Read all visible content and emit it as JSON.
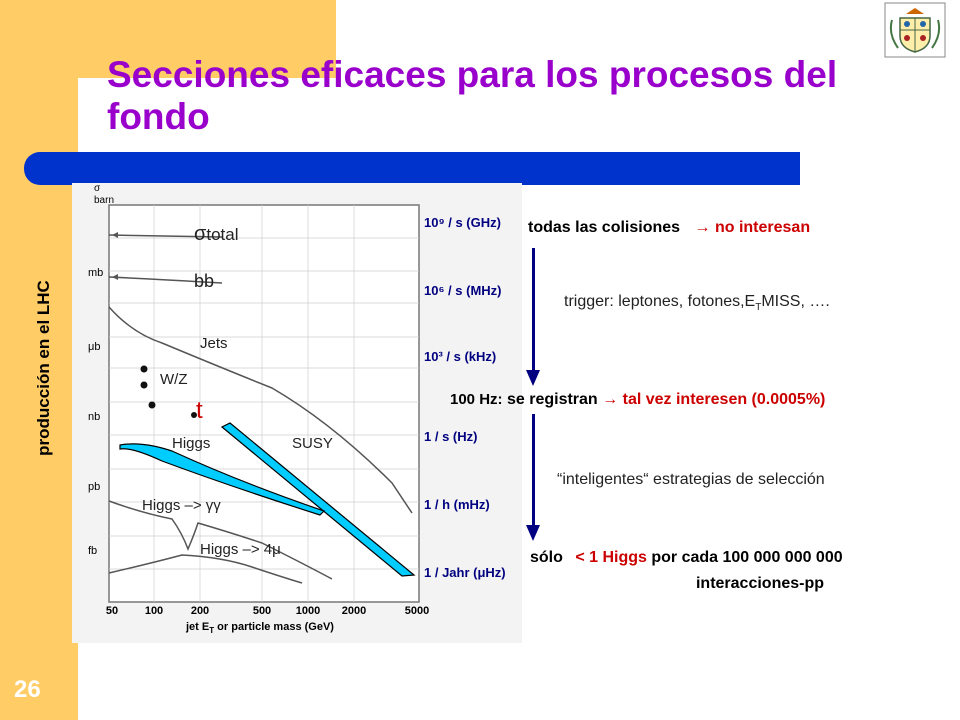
{
  "slide": {
    "title": "Secciones eficaces para los procesos del fondo",
    "side_label": "producción en el  LHC",
    "page_number": "26"
  },
  "colors": {
    "accent": "#ffcc66",
    "bar": "#0033cc",
    "title": "#9900cc",
    "highlight": "#cc0000",
    "arrow": "#000080",
    "band": "#00ccff"
  },
  "chart_data": {
    "type": "line",
    "y_axis_label": "σ",
    "y_axis_unit": "barn",
    "y_ticks": [
      "barn",
      "mb",
      "μb",
      "nb",
      "pb",
      "fb"
    ],
    "x_ticks": [
      "50",
      "100",
      "200",
      "500",
      "1000",
      "2000",
      "5000"
    ],
    "x_axis_label_prefix": "jet E",
    "x_axis_label_sub": "T",
    "x_axis_label_suffix": " or particle mass (GeV)",
    "rate_ticks": [
      "10⁹ / s (GHz)",
      "10⁶ / s (MHz)",
      "10³ / s (kHz)",
      "1 / s (Hz)",
      "1 / h (mHz)",
      "1 / Jahr (μHz)"
    ],
    "labels": {
      "sigma": "σ",
      "sigma_sub": "total",
      "bb": "bb",
      "jets": "Jets",
      "wz": "W/Z",
      "top": "t",
      "higgs": "Higgs",
      "susy": "SUSY",
      "higgs_gg": "Higgs –> γγ",
      "higgs_4mu": "Higgs –> 4μ"
    }
  },
  "notes": {
    "all_collisions": "todas las colisiones",
    "arrow_sym": "→",
    "not_interesting": "no interesan",
    "trigger_prefix": "trigger: leptones, fotones,E",
    "trigger_sub": "T",
    "trigger_suffix": "MISS, ….",
    "hz_label": "100 Hz:",
    "recorded": "se registran",
    "maybe": "tal vez  interesen (0.0005%)",
    "strategies": "“inteligentes“ estrategias de selección",
    "only": "sólo",
    "higgs_count": "< 1 Higgs",
    "per_each": "por cada 100 000 000 000",
    "interactions": "interacciones-pp"
  }
}
